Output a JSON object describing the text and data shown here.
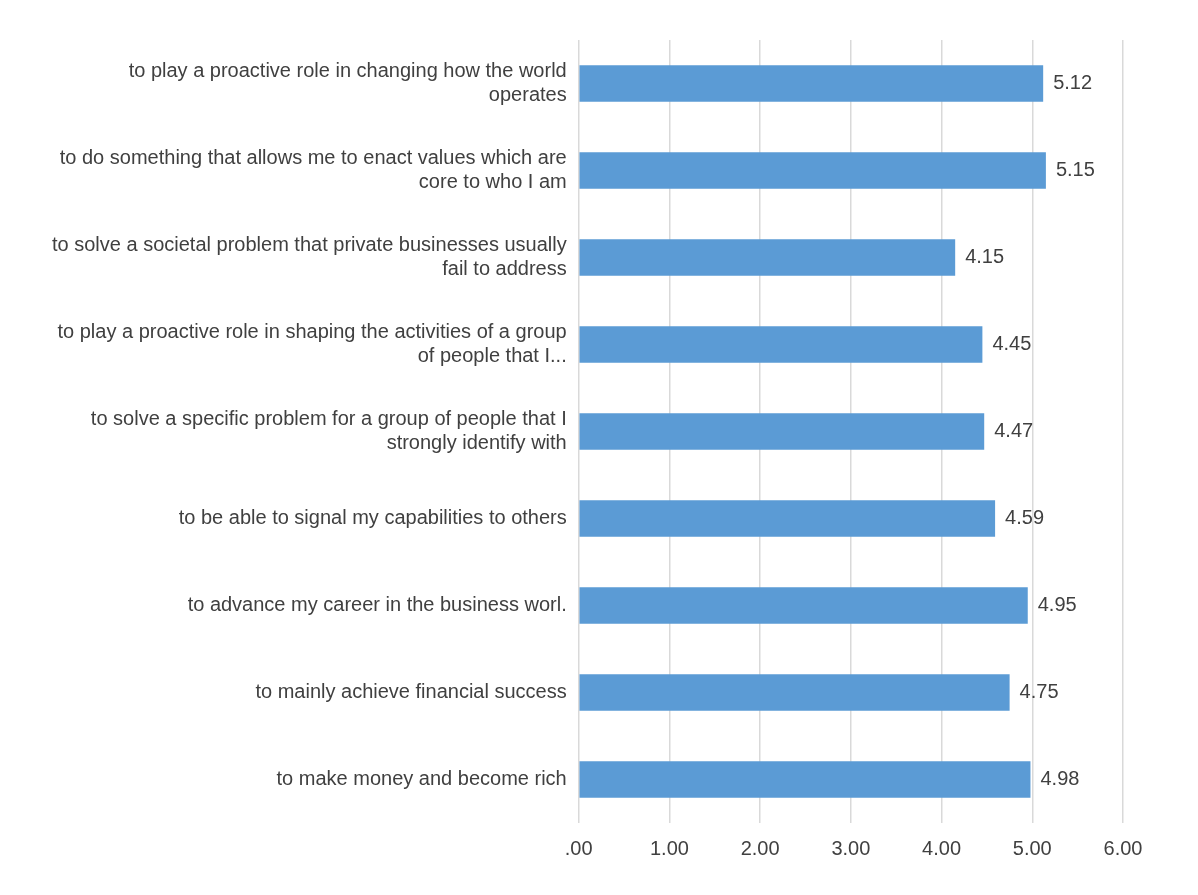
{
  "chart_data": {
    "type": "bar",
    "orientation": "horizontal",
    "categories": [
      "to play a proactive role in changing how the world operates",
      "to do something that allows me to enact values which are core to who I am",
      "to solve a societal problem that private businesses usually fail to address",
      "to play a proactive role in shaping the activities of a group of people that I...",
      "to solve a specific problem for a group of people that I strongly identify with",
      "to be able to signal my capabilities to others",
      "to advance my career in the business worl.",
      "to mainly achieve financial success",
      "to make money and become rich"
    ],
    "values": [
      5.12,
      5.15,
      4.15,
      4.45,
      4.47,
      4.59,
      4.95,
      4.75,
      4.98
    ],
    "color": "#5b9bd5",
    "xlim": [
      0,
      6
    ],
    "xticks": [
      {
        "value": 0,
        "label": ".00"
      },
      {
        "value": 1,
        "label": "1.00"
      },
      {
        "value": 2,
        "label": "2.00"
      },
      {
        "value": 3,
        "label": "3.00"
      },
      {
        "value": 4,
        "label": "4.00"
      },
      {
        "value": 5,
        "label": "5.00"
      },
      {
        "value": 6,
        "label": "6.00"
      }
    ],
    "grid": "x",
    "data_labels": true
  }
}
